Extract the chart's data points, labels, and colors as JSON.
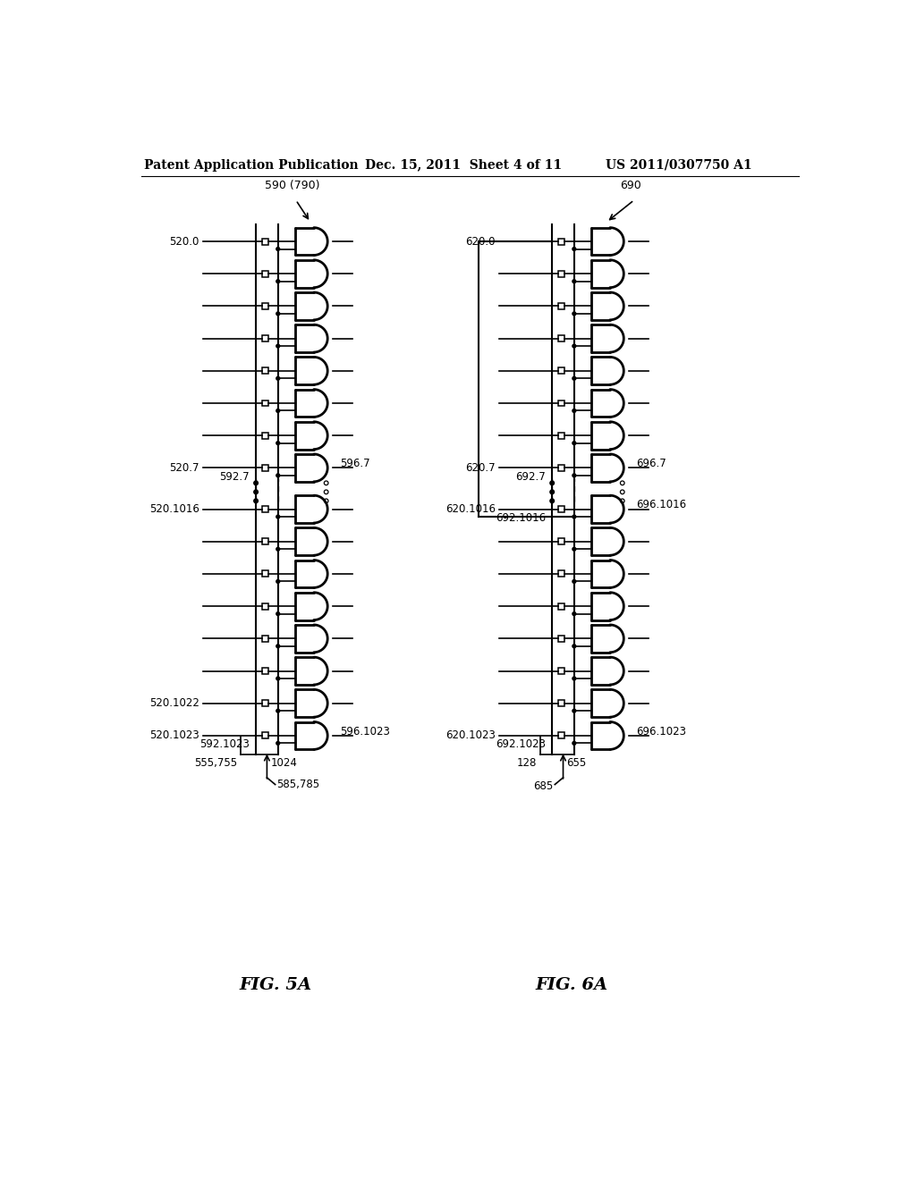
{
  "header_left": "Patent Application Publication",
  "header_mid": "Dec. 15, 2011  Sheet 4 of 11",
  "header_right": "US 2011/0307750 A1",
  "fig5a_label": "FIG. 5A",
  "fig6a_label": "FIG. 6A",
  "fig5_title": "590 (790)",
  "fig6_title": "690",
  "bg_color": "#ffffff"
}
